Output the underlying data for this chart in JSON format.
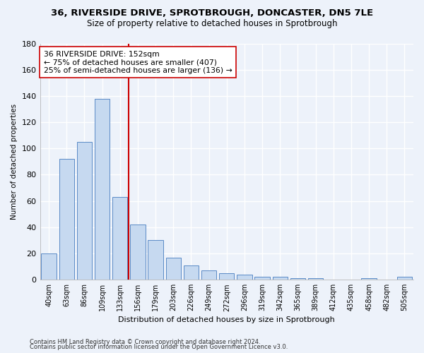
{
  "title1": "36, RIVERSIDE DRIVE, SPROTBROUGH, DONCASTER, DN5 7LE",
  "title2": "Size of property relative to detached houses in Sprotbrough",
  "xlabel": "Distribution of detached houses by size in Sprotbrough",
  "ylabel": "Number of detached properties",
  "bar_color": "#c6d9f0",
  "bar_edge_color": "#5a8ac6",
  "marker_color": "#cc0000",
  "categories": [
    "40sqm",
    "63sqm",
    "86sqm",
    "109sqm",
    "133sqm",
    "156sqm",
    "179sqm",
    "203sqm",
    "226sqm",
    "249sqm",
    "272sqm",
    "296sqm",
    "319sqm",
    "342sqm",
    "365sqm",
    "389sqm",
    "412sqm",
    "435sqm",
    "458sqm",
    "482sqm",
    "505sqm"
  ],
  "values": [
    20,
    92,
    105,
    138,
    63,
    42,
    30,
    17,
    11,
    7,
    5,
    4,
    2,
    2,
    1,
    1,
    0,
    0,
    1,
    0,
    2
  ],
  "ylim": [
    0,
    180
  ],
  "yticks": [
    0,
    20,
    40,
    60,
    80,
    100,
    120,
    140,
    160,
    180
  ],
  "annotation_line1": "36 RIVERSIDE DRIVE: 152sqm",
  "annotation_line2": "← 75% of detached houses are smaller (407)",
  "annotation_line3": "25% of semi-detached houses are larger (136) →",
  "footer1": "Contains HM Land Registry data © Crown copyright and database right 2024.",
  "footer2": "Contains public sector information licensed under the Open Government Licence v3.0.",
  "bg_color": "#edf2fa",
  "grid_color": "#ffffff",
  "marker_bar_index": 5,
  "title1_fontsize": 9.5,
  "title2_fontsize": 8.5,
  "annotation_fontsize": 7.8,
  "ylabel_fontsize": 7.5,
  "xlabel_fontsize": 8.0,
  "tick_fontsize": 7.0
}
